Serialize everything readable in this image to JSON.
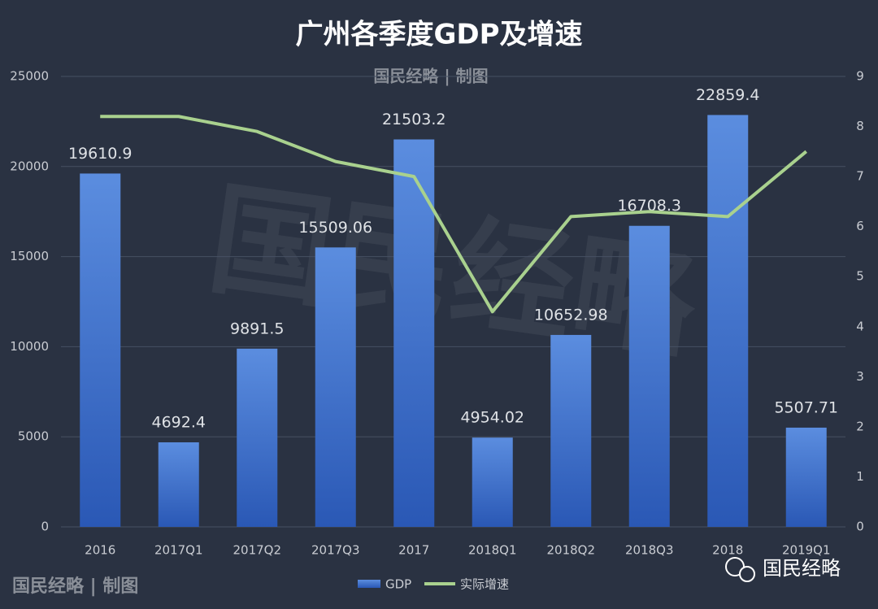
{
  "chart_data": {
    "type": "bar-line",
    "title": "广州各季度GDP及增速",
    "credit": "国民经略 | 制图",
    "watermark": "国民经略",
    "categories": [
      "2016",
      "2017Q1",
      "2017Q2",
      "2017Q3",
      "2017",
      "2018Q1",
      "2018Q2",
      "2018Q3",
      "2018",
      "2019Q1"
    ],
    "series": [
      {
        "name": "GDP",
        "type": "bar",
        "color": "#5b8ddf",
        "values": [
          19610.9,
          4692.4,
          9891.5,
          15509.06,
          21503.2,
          4954.02,
          10652.98,
          16708.3,
          22859.4,
          5507.71
        ]
      },
      {
        "name": "实际增速",
        "type": "line",
        "axis": "y2",
        "color": "#a9d18e",
        "values": [
          8.2,
          8.2,
          7.9,
          7.3,
          7.0,
          4.3,
          6.2,
          6.3,
          6.2,
          7.5
        ]
      }
    ],
    "ylim": [
      0,
      25000
    ],
    "yticks": [
      0,
      5000,
      10000,
      15000,
      20000,
      25000
    ],
    "y2lim": [
      0,
      9
    ],
    "y2ticks": [
      0,
      1,
      2,
      3,
      4,
      5,
      6,
      7,
      8,
      9
    ],
    "grid": true,
    "legend": "bottom"
  }
}
